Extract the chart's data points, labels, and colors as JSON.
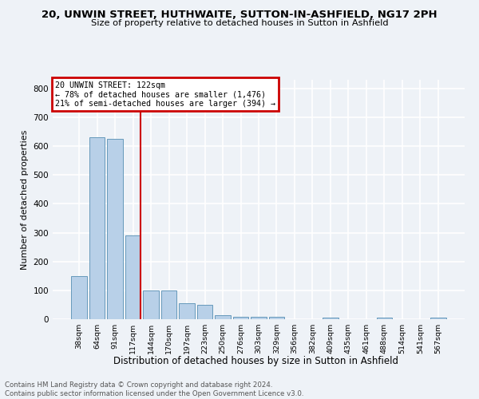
{
  "title1": "20, UNWIN STREET, HUTHWAITE, SUTTON-IN-ASHFIELD, NG17 2PH",
  "title2": "Size of property relative to detached houses in Sutton in Ashfield",
  "xlabel": "Distribution of detached houses by size in Sutton in Ashfield",
  "ylabel": "Number of detached properties",
  "footnote": "Contains HM Land Registry data © Crown copyright and database right 2024.\nContains public sector information licensed under the Open Government Licence v3.0.",
  "categories": [
    "38sqm",
    "64sqm",
    "91sqm",
    "117sqm",
    "144sqm",
    "170sqm",
    "197sqm",
    "223sqm",
    "250sqm",
    "276sqm",
    "303sqm",
    "329sqm",
    "356sqm",
    "382sqm",
    "409sqm",
    "435sqm",
    "461sqm",
    "488sqm",
    "514sqm",
    "541sqm",
    "567sqm"
  ],
  "values": [
    150,
    630,
    625,
    290,
    100,
    100,
    55,
    50,
    15,
    8,
    8,
    8,
    0,
    0,
    5,
    0,
    0,
    5,
    0,
    0,
    5
  ],
  "bar_color": "#b8d0e8",
  "bar_edge_color": "#6699bb",
  "property_line_color": "#cc0000",
  "annotation_line1": "20 UNWIN STREET: 122sqm",
  "annotation_line2": "← 78% of detached houses are smaller (1,476)",
  "annotation_line3": "21% of semi-detached houses are larger (394) →",
  "ylim": [
    0,
    830
  ],
  "yticks": [
    0,
    100,
    200,
    300,
    400,
    500,
    600,
    700,
    800
  ],
  "bg_color": "#eef2f7",
  "grid_color": "#ffffff"
}
